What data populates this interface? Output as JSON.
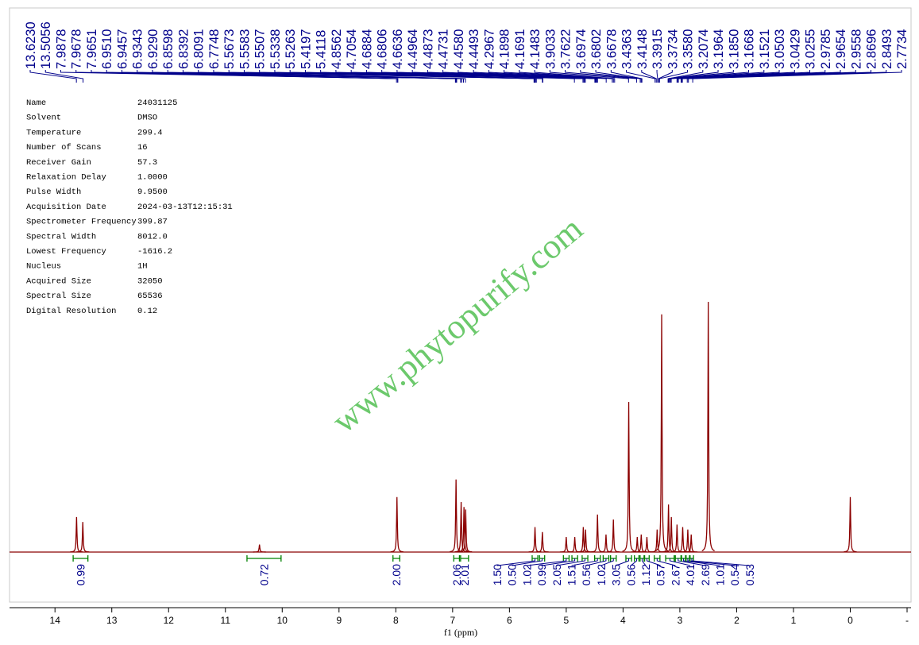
{
  "chart_data": {
    "type": "nmr",
    "xlabel": "f1 (ppm)",
    "watermark": "www.phytopurify.com",
    "xlim": [
      14.8,
      -1.07
    ],
    "xticks": [
      14,
      13,
      12,
      11,
      10,
      9,
      8,
      7,
      6,
      5,
      4,
      3,
      2,
      1,
      0,
      {
        "value": -1,
        "label": "-"
      }
    ],
    "color": "#8b0000",
    "peak_label_color": "#00008b",
    "integral_color": "#008000",
    "peak_labels": [
      "13.6230",
      "13.5056",
      "7.9878",
      "7.9678",
      "7.9651",
      "6.9510",
      "6.9457",
      "6.9343",
      "6.9290",
      "6.8598",
      "6.8392",
      "6.8091",
      "6.7748",
      "5.5673",
      "5.5583",
      "5.5507",
      "5.5338",
      "5.5263",
      "5.4197",
      "5.4118",
      "4.8562",
      "4.7054",
      "4.6884",
      "4.6806",
      "4.6636",
      "4.4964",
      "4.4873",
      "4.4731",
      "4.4580",
      "4.4493",
      "4.2967",
      "4.1898",
      "4.1691",
      "4.1483",
      "3.9033",
      "3.7622",
      "3.6974",
      "3.6802",
      "3.6678",
      "3.4363",
      "3.4148",
      "3.3915",
      "3.3734",
      "3.3580",
      "3.2074",
      "3.1964",
      "3.1850",
      "3.1668",
      "3.1521",
      "3.0503",
      "3.0429",
      "3.0255",
      "2.9785",
      "2.9654",
      "2.9558",
      "2.8696",
      "2.8493",
      "2.7734"
    ],
    "peaks": {
      "x": [
        13.62,
        13.51,
        10.4,
        7.98,
        6.94,
        6.85,
        6.8,
        6.77,
        5.55,
        5.42,
        5.0,
        4.85,
        4.7,
        4.66,
        4.45,
        4.3,
        4.17,
        3.9,
        3.75,
        3.68,
        3.58,
        3.4,
        3.32,
        3.2,
        3.15,
        3.05,
        2.95,
        2.86,
        2.8,
        2.5,
        0.0
      ],
      "values": [
        14,
        12,
        3,
        22,
        29,
        20,
        18,
        17,
        10,
        8,
        6,
        6,
        10,
        9,
        15,
        7,
        13,
        60,
        6,
        7,
        6,
        9,
        95,
        19,
        14,
        11,
        10,
        9,
        7,
        100,
        22
      ]
    },
    "integrals": [
      {
        "value": 0.99,
        "label": "0.99",
        "range": [
          13.68,
          13.42
        ]
      },
      {
        "value": 0.72,
        "label": "0.72",
        "range": [
          10.62,
          10.02
        ]
      },
      {
        "value": 2.0,
        "label": "2.00",
        "range": [
          8.05,
          7.93
        ]
      },
      {
        "value": 2.06,
        "label": "2.06",
        "range": [
          6.98,
          6.88
        ]
      },
      {
        "value": 2.01,
        "label": "2.01",
        "range": [
          6.86,
          6.72
        ]
      },
      {
        "value": 1.5,
        "label": "1.50",
        "range": [
          5.6,
          5.5
        ]
      },
      {
        "value": 0.5,
        "label": "0.50",
        "range": [
          5.47,
          5.38
        ]
      },
      {
        "value": 1.02,
        "label": "1.02",
        "range": [
          5.05,
          4.95
        ]
      },
      {
        "value": 0.99,
        "label": "0.99",
        "range": [
          4.9,
          4.8
        ]
      },
      {
        "value": 2.05,
        "label": "2.05",
        "range": [
          4.72,
          4.62
        ]
      },
      {
        "value": 1.51,
        "label": "1.51",
        "range": [
          4.5,
          4.4
        ]
      },
      {
        "value": 0.56,
        "label": "0.56",
        "range": [
          4.35,
          4.25
        ]
      },
      {
        "value": 1.02,
        "label": "1.02",
        "range": [
          4.22,
          4.12
        ]
      },
      {
        "value": 3.05,
        "label": "3.05",
        "range": [
          3.95,
          3.85
        ]
      },
      {
        "value": 0.56,
        "label": "0.56",
        "range": [
          3.8,
          3.72
        ]
      },
      {
        "value": 1.12,
        "label": "1.12",
        "range": [
          3.7,
          3.63
        ]
      },
      {
        "value": 0.57,
        "label": "0.57",
        "range": [
          3.62,
          3.54
        ]
      },
      {
        "value": 2.67,
        "label": "2.67",
        "range": [
          3.45,
          3.35
        ]
      },
      {
        "value": 4.01,
        "label": "4.01",
        "range": [
          3.25,
          3.1
        ]
      },
      {
        "value": 2.69,
        "label": "2.69",
        "range": [
          3.08,
          2.98
        ]
      },
      {
        "value": 1.01,
        "label": "1.01",
        "range": [
          2.97,
          2.9
        ]
      },
      {
        "value": 0.54,
        "label": "0.54",
        "range": [
          2.89,
          2.83
        ]
      },
      {
        "value": 0.53,
        "label": "0.53",
        "range": [
          2.82,
          2.76
        ]
      }
    ],
    "parameters": [
      [
        "Name",
        "24031125"
      ],
      [
        "Solvent",
        "DMSO"
      ],
      [
        "Temperature",
        "299.4"
      ],
      [
        "Number of Scans",
        "16"
      ],
      [
        "Receiver Gain",
        "57.3"
      ],
      [
        "Relaxation Delay",
        "1.0000"
      ],
      [
        "Pulse Width",
        "9.9500"
      ],
      [
        "Acquisition Date",
        "2024-03-13T12:15:31"
      ],
      [
        "Spectrometer Frequency",
        "399.87"
      ],
      [
        "Spectral Width",
        "8012.0"
      ],
      [
        "Lowest Frequency",
        "-1616.2"
      ],
      [
        "Nucleus",
        "1H"
      ],
      [
        "Acquired Size",
        "32050"
      ],
      [
        "Spectral Size",
        "65536"
      ],
      [
        "Digital Resolution",
        "0.12"
      ]
    ]
  }
}
